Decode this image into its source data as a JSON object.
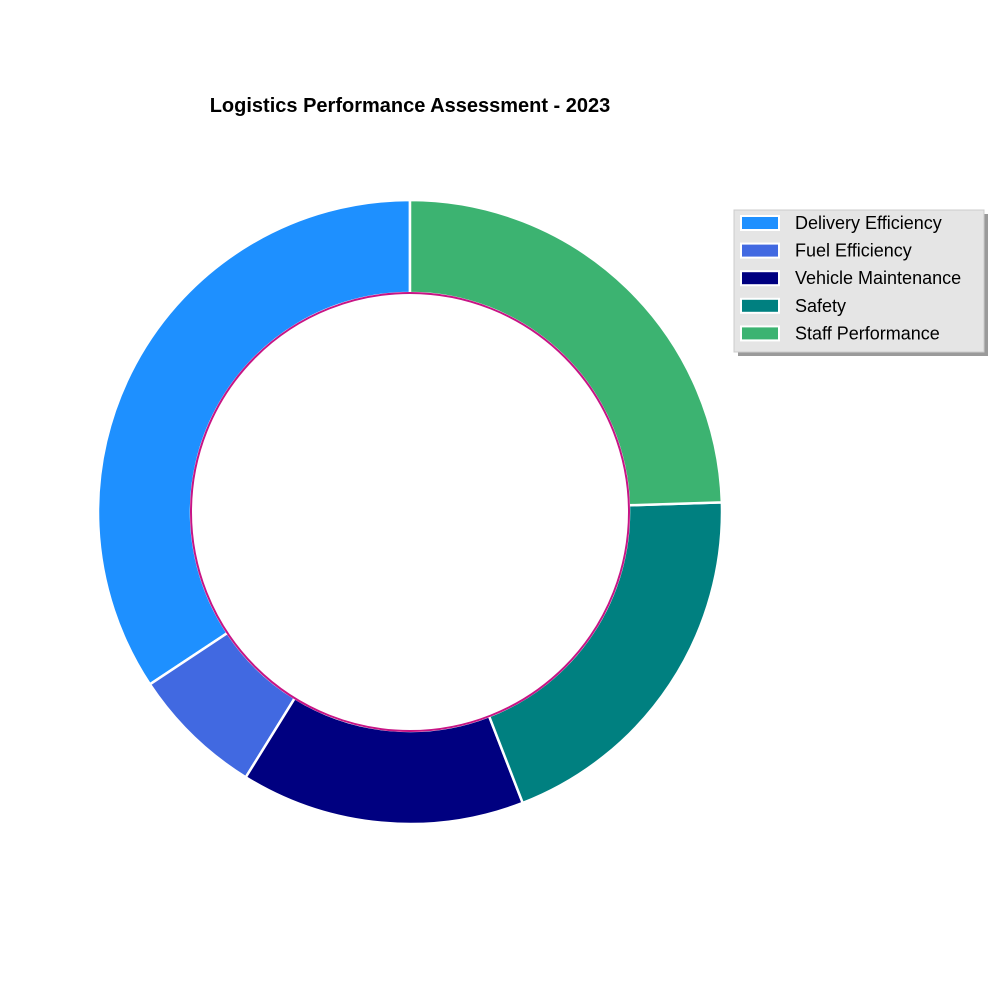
{
  "chart_data": {
    "type": "pie",
    "title": "Logistics Performance Assessment - 2023",
    "categories": [
      "Delivery Efficiency",
      "Fuel Efficiency",
      "Vehicle Maintenance",
      "Safety",
      "Staff Performance"
    ],
    "values": [
      35,
      7,
      15,
      20,
      25
    ],
    "colors": [
      "#1E90FF",
      "#4169E1",
      "#000080",
      "#008080",
      "#3CB371"
    ],
    "inner_circle_color": "#C71585",
    "legend_placement": "top-right",
    "donut": true
  }
}
